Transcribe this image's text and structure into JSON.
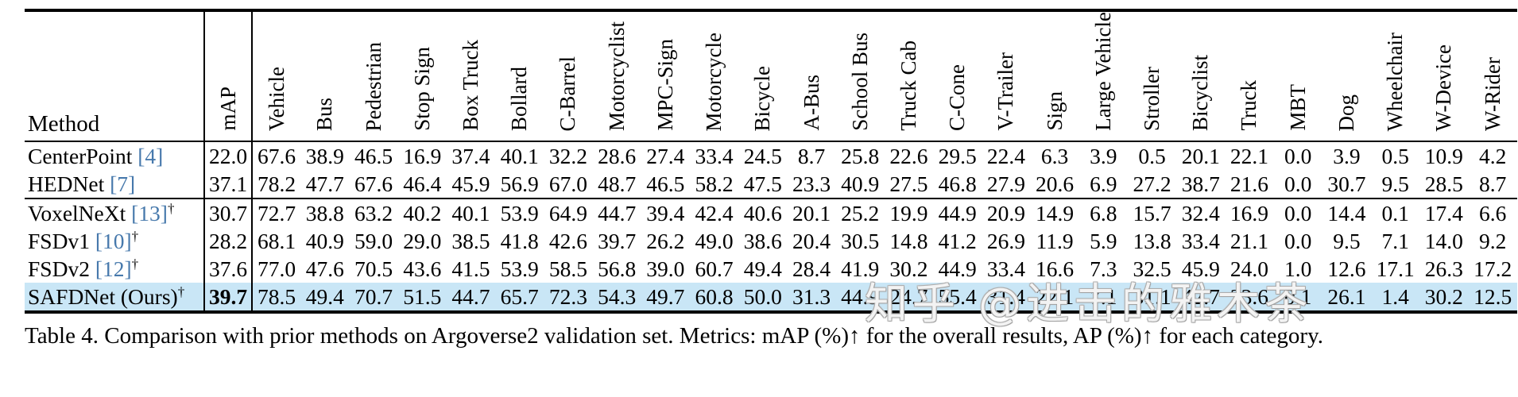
{
  "table": {
    "method_header": "Method",
    "columns": [
      "mAP",
      "Vehicle",
      "Bus",
      "Pedestrian",
      "Stop Sign",
      "Box Truck",
      "Bollard",
      "C-Barrel",
      "Motorcyclist",
      "MPC-Sign",
      "Motorcycle",
      "Bicycle",
      "A-Bus",
      "School Bus",
      "Truck Cab",
      "C-Cone",
      "V-Trailer",
      "Sign",
      "Large Vehicle",
      "Stroller",
      "Bicyclist",
      "Truck",
      "MBT",
      "Dog",
      "Wheelchair",
      "W-Device",
      "W-Rider"
    ],
    "groups": [
      {
        "rows": [
          {
            "method": "CenterPoint",
            "cite": "[4]",
            "dagger": "",
            "map": "22.0",
            "bold_map": false,
            "highlight": false,
            "values": [
              "67.6",
              "38.9",
              "46.5",
              "16.9",
              "37.4",
              "40.1",
              "32.2",
              "28.6",
              "27.4",
              "33.4",
              "24.5",
              "8.7",
              "25.8",
              "22.6",
              "29.5",
              "22.4",
              "6.3",
              "3.9",
              "0.5",
              "20.1",
              "22.1",
              "0.0",
              "3.9",
              "0.5",
              "10.9",
              "4.2"
            ]
          },
          {
            "method": "HEDNet",
            "cite": "[7]",
            "dagger": "",
            "map": "37.1",
            "bold_map": false,
            "highlight": false,
            "values": [
              "78.2",
              "47.7",
              "67.6",
              "46.4",
              "45.9",
              "56.9",
              "67.0",
              "48.7",
              "46.5",
              "58.2",
              "47.5",
              "23.3",
              "40.9",
              "27.5",
              "46.8",
              "27.9",
              "20.6",
              "6.9",
              "27.2",
              "38.7",
              "21.6",
              "0.0",
              "30.7",
              "9.5",
              "28.5",
              "8.7"
            ]
          }
        ]
      },
      {
        "rows": [
          {
            "method": "VoxelNeXt",
            "cite": "[13]",
            "dagger": "†",
            "map": "30.7",
            "bold_map": false,
            "highlight": false,
            "values": [
              "72.7",
              "38.8",
              "63.2",
              "40.2",
              "40.1",
              "53.9",
              "64.9",
              "44.7",
              "39.4",
              "42.4",
              "40.6",
              "20.1",
              "25.2",
              "19.9",
              "44.9",
              "20.9",
              "14.9",
              "6.8",
              "15.7",
              "32.4",
              "16.9",
              "0.0",
              "14.4",
              "0.1",
              "17.4",
              "6.6"
            ]
          },
          {
            "method": "FSDv1",
            "cite": "[10]",
            "dagger": "†",
            "map": "28.2",
            "bold_map": false,
            "highlight": false,
            "values": [
              "68.1",
              "40.9",
              "59.0",
              "29.0",
              "38.5",
              "41.8",
              "42.6",
              "39.7",
              "26.2",
              "49.0",
              "38.6",
              "20.4",
              "30.5",
              "14.8",
              "41.2",
              "26.9",
              "11.9",
              "5.9",
              "13.8",
              "33.4",
              "21.1",
              "0.0",
              "9.5",
              "7.1",
              "14.0",
              "9.2"
            ]
          },
          {
            "method": "FSDv2",
            "cite": "[12]",
            "dagger": "†",
            "map": "37.6",
            "bold_map": false,
            "highlight": false,
            "values": [
              "77.0",
              "47.6",
              "70.5",
              "43.6",
              "41.5",
              "53.9",
              "58.5",
              "56.8",
              "39.0",
              "60.7",
              "49.4",
              "28.4",
              "41.9",
              "30.2",
              "44.9",
              "33.4",
              "16.6",
              "7.3",
              "32.5",
              "45.9",
              "24.0",
              "1.0",
              "12.6",
              "17.1",
              "26.3",
              "17.2"
            ]
          },
          {
            "method": "SAFDNet (Ours)",
            "cite": "",
            "dagger": "†",
            "map": "39.7",
            "bold_map": true,
            "highlight": true,
            "values": [
              "78.5",
              "49.4",
              "70.7",
              "51.5",
              "44.7",
              "65.7",
              "72.3",
              "54.3",
              "49.7",
              "60.8",
              "50.0",
              "31.3",
              "44.9",
              "24.7",
              "55.4",
              "31.4",
              "22.1",
              "7.1",
              "31.1",
              "42.7",
              "23.6",
              "0.1",
              "26.1",
              "1.4",
              "30.2",
              "12.5"
            ]
          }
        ]
      }
    ]
  },
  "caption": "Table 4. Comparison with prior methods on Argoverse2 validation set. Metrics: mAP (%)↑ for the overall results, AP (%)↑ for each category.",
  "watermark": "知乎 @进击的雅木茶",
  "colors": {
    "highlight_row": "#c9e6f6",
    "citation_blue": "#4779ac",
    "rule_black": "#000000"
  }
}
